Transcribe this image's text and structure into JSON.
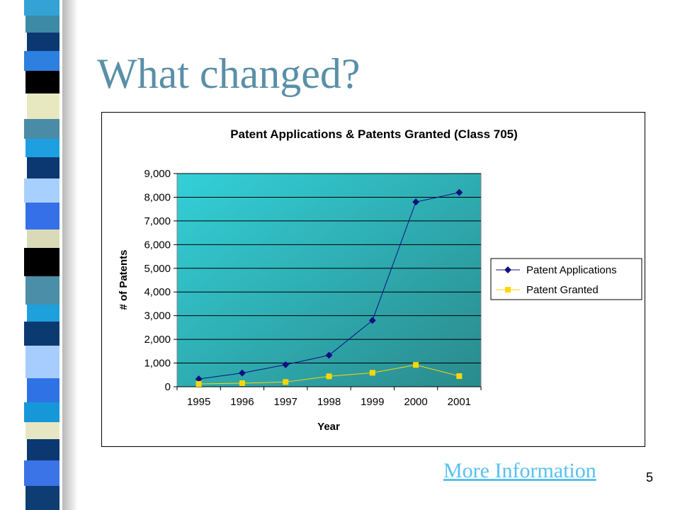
{
  "slide": {
    "title": "What changed?",
    "link_text": "More Information",
    "slide_number": "5"
  },
  "colors": {
    "title": "#5a8fa8",
    "link": "#58c0f0",
    "plot_bg_start": "#33d0d8",
    "plot_bg_end": "#2a8a8c",
    "applications": "#101080",
    "granted": "#ffd700",
    "strip": [
      "#33a3d6",
      "#3d8aa6",
      "#0b3870",
      "#2d7fe0",
      "#000000",
      "#e8e8c0",
      "#4a8ca6",
      "#1e9fe0",
      "#0b3870",
      "#a8d0ff",
      "#3570e8",
      "#dadab8",
      "#000000",
      "#4b8ea8",
      "#1da0dc",
      "#0b3a70",
      "#a7cdff",
      "#2f72e6",
      "#1698d8",
      "#e6e6c2",
      "#0b3870",
      "#3b74e6",
      "#0e3d74"
    ]
  },
  "chart_data": {
    "type": "line",
    "title": "Patent Applications & Patents Granted (Class 705)",
    "xlabel": "Year",
    "ylabel": "# of Patents",
    "categories": [
      "1995",
      "1996",
      "1997",
      "1998",
      "1999",
      "2000",
      "2001"
    ],
    "ylim": [
      0,
      9000
    ],
    "yticks": [
      "0",
      "1,000",
      "2,000",
      "3,000",
      "4,000",
      "5,000",
      "6,000",
      "7,000",
      "8,000",
      "9,000"
    ],
    "grid": true,
    "legend_position": "right",
    "series": [
      {
        "name": "Patent Applications",
        "marker": "diamond",
        "values": [
          330,
          580,
          930,
          1330,
          2800,
          7800,
          8200
        ]
      },
      {
        "name": "Patent Granted",
        "marker": "square",
        "values": [
          120,
          150,
          200,
          440,
          590,
          920,
          450
        ]
      }
    ]
  }
}
